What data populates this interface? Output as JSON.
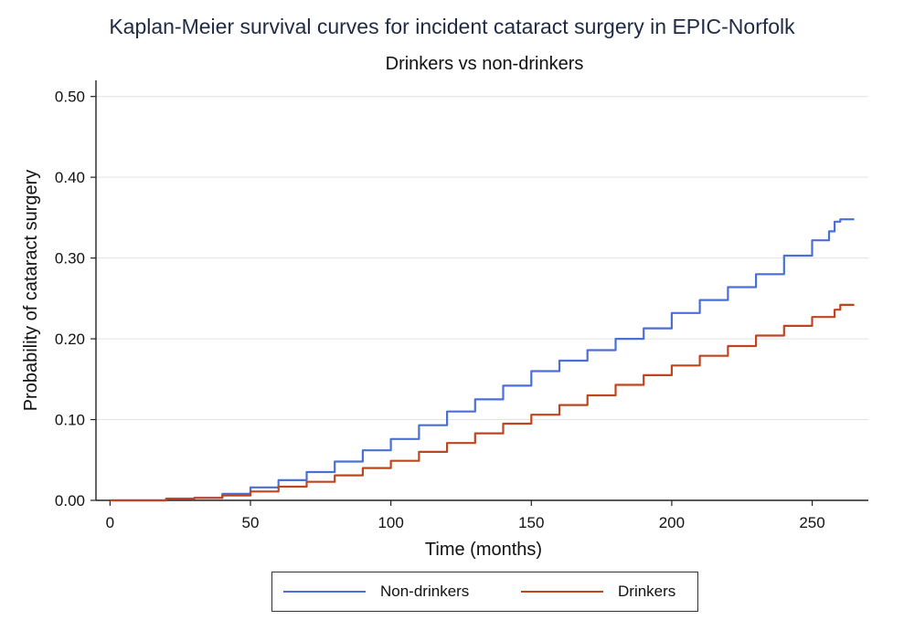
{
  "chart_data": {
    "type": "line",
    "title": "Kaplan-Meier survival curves for incident cataract surgery in EPIC-Norfolk",
    "subtitle": "Drinkers vs non-drinkers",
    "xlabel": "Time (months)",
    "ylabel": "Probability of cataract surgery",
    "xlim": [
      -5,
      270
    ],
    "ylim": [
      0,
      0.52
    ],
    "xticks": [
      0,
      50,
      100,
      150,
      200,
      250
    ],
    "xtick_labels": [
      "0",
      "50",
      "100",
      "150",
      "200",
      "250"
    ],
    "yticks": [
      0,
      0.1,
      0.2,
      0.3,
      0.4,
      0.5
    ],
    "ytick_labels": [
      "0.00",
      "0.10",
      "0.20",
      "0.30",
      "0.40",
      "0.50"
    ],
    "grid": true,
    "legend_position": "bottom",
    "series": [
      {
        "name": "Non-drinkers",
        "color": "#4a6fd6",
        "x": [
          0,
          10,
          20,
          30,
          40,
          50,
          60,
          70,
          80,
          90,
          100,
          110,
          120,
          130,
          140,
          150,
          160,
          170,
          180,
          190,
          200,
          210,
          220,
          230,
          240,
          250,
          256,
          258,
          260,
          265
        ],
        "y": [
          0.0,
          0.0,
          0.002,
          0.003,
          0.008,
          0.016,
          0.025,
          0.035,
          0.048,
          0.062,
          0.076,
          0.093,
          0.11,
          0.125,
          0.142,
          0.16,
          0.173,
          0.186,
          0.2,
          0.213,
          0.232,
          0.248,
          0.264,
          0.28,
          0.303,
          0.322,
          0.333,
          0.345,
          0.348,
          0.348
        ]
      },
      {
        "name": "Drinkers",
        "color": "#c0451f",
        "x": [
          0,
          10,
          20,
          30,
          40,
          50,
          60,
          70,
          80,
          90,
          100,
          110,
          120,
          130,
          140,
          150,
          160,
          170,
          180,
          190,
          200,
          210,
          220,
          230,
          240,
          250,
          258,
          260,
          265
        ],
        "y": [
          0.0,
          0.0,
          0.002,
          0.003,
          0.006,
          0.011,
          0.017,
          0.023,
          0.031,
          0.04,
          0.049,
          0.06,
          0.071,
          0.083,
          0.095,
          0.106,
          0.118,
          0.13,
          0.143,
          0.155,
          0.167,
          0.179,
          0.191,
          0.204,
          0.216,
          0.227,
          0.236,
          0.242,
          0.242
        ]
      }
    ]
  }
}
